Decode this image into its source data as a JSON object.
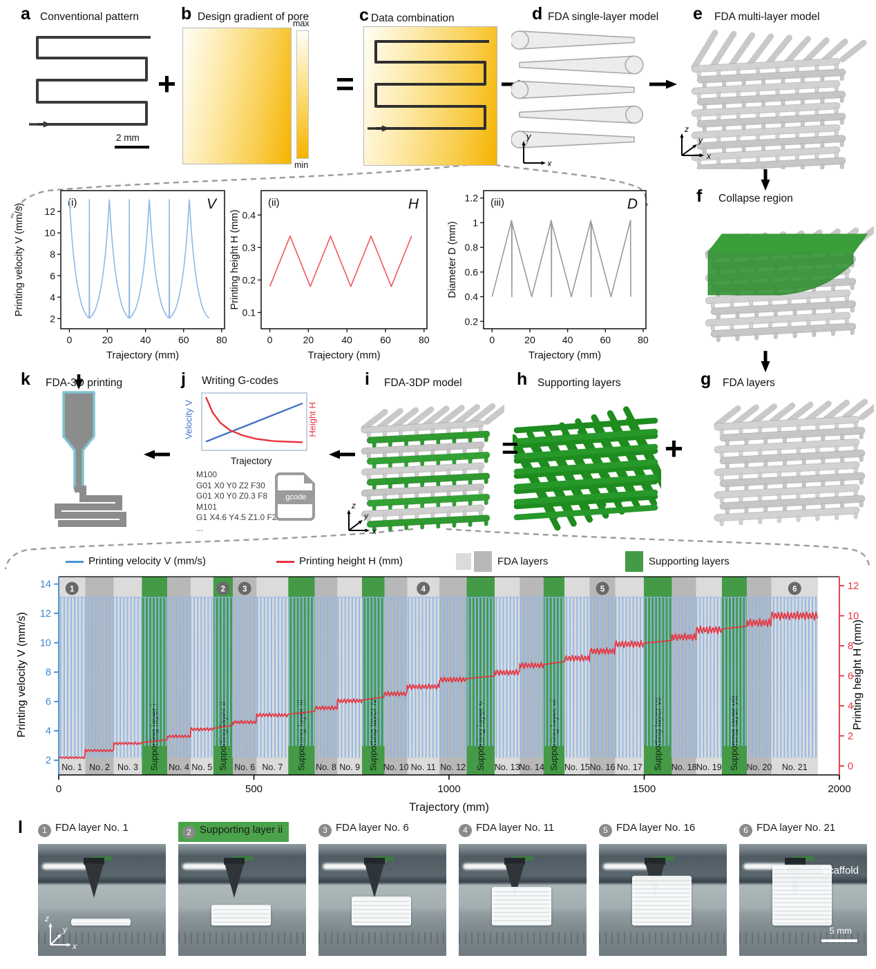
{
  "colors": {
    "blue_axis": "#3f87d2",
    "blue_curve": "#8fb8e8",
    "blue_legend": "#4a90d9",
    "red": "#e8323c",
    "red_curve": "#ee4048",
    "green": "#459a48",
    "green_dark": "#1e8c1e",
    "orange": "#f6b301",
    "gray_band_light": "#dbdbdb",
    "gray_band_dark": "#b8b8b8",
    "badge": "#696969",
    "pattern_stroke": "#3a3a3a",
    "lattice_gray": "#cccccc"
  },
  "panels": {
    "a": {
      "label": "a",
      "title": "Conventional pattern",
      "scale_bar": "2 mm"
    },
    "op_plus_top": "+",
    "b": {
      "label": "b",
      "title": "Design gradient of pore",
      "colorbar_max": "max",
      "colorbar_min": "min"
    },
    "op_equals_top": "=",
    "c": {
      "label": "c",
      "title": "Data combination"
    },
    "d": {
      "label": "d",
      "title": "FDA single-layer model",
      "axis_v": "y",
      "axis_h": "x"
    },
    "e": {
      "label": "e",
      "title": "FDA multi-layer model",
      "axis_up": "z",
      "axis_diag": "y",
      "axis_right": "x"
    },
    "f": {
      "label": "f",
      "title": "Collapse region"
    },
    "g": {
      "label": "g",
      "title": "FDA layers"
    },
    "h": {
      "label": "h",
      "title": "Supporting layers"
    },
    "i": {
      "label": "i",
      "title": "FDA-3DP model",
      "axis_up": "z",
      "axis_diag": "y",
      "axis_right": "x"
    },
    "j": {
      "label": "j",
      "title": "Writing G-codes",
      "mini_left": "Velocity V",
      "mini_right": "Height H",
      "mini_x": "Trajectory",
      "file_label": ".gcode",
      "gcode": [
        "M100",
        "G01 X0 Y0 Z2 F30",
        "G01 X0 Y0 Z0.3 F8",
        "M101",
        "G1 X4.6 Y4.5 Z1.0 F2",
        "..."
      ]
    },
    "k": {
      "label": "k",
      "title": "FDA-3D printing"
    },
    "op_equals_mid": "=",
    "op_plus_mid": "+",
    "l": {
      "label": "l",
      "scaffold_label": "Scaffold",
      "scale_bar": "5 mm",
      "axis_up": "z",
      "axis_diag": "y",
      "axis_right": "x",
      "photos": [
        {
          "badge": "1",
          "caption": "FDA layer No. 1",
          "scaffold_h": 10,
          "support": false,
          "show_axes": true
        },
        {
          "badge": "2",
          "caption": "Supporting layer ii",
          "scaffold_h": 30,
          "support": true,
          "show_axes": false
        },
        {
          "badge": "3",
          "caption": "FDA layer No. 6",
          "scaffold_h": 42,
          "support": false,
          "show_axes": false
        },
        {
          "badge": "4",
          "caption": "FDA layer No. 11",
          "scaffold_h": 56,
          "support": false,
          "show_axes": false
        },
        {
          "badge": "5",
          "caption": "FDA layer No. 16",
          "scaffold_h": 72,
          "support": false,
          "show_axes": false
        },
        {
          "badge": "6",
          "caption": "FDA layer No. 21",
          "scaffold_h": 88,
          "support": false,
          "show_axes": false
        }
      ]
    }
  },
  "chart_data": [
    {
      "id": "panel_i_velocity",
      "type": "line",
      "panel_tag": "(i)",
      "corner": "V",
      "xlabel": "Trajectory (mm)",
      "ylabel": "Printing velocity V (mm/s)",
      "xlim": [
        -4.5,
        81.5
      ],
      "xticks": [
        0,
        20,
        40,
        60,
        80
      ],
      "ylim": [
        1.05,
        13.95
      ],
      "yticks": [
        2,
        4,
        6,
        8,
        10,
        12
      ],
      "x_end": 73.45,
      "period_mm": 21,
      "color": "#8fb8e8",
      "points_period": [
        [
          0,
          13.1
        ],
        [
          1,
          10.3
        ],
        [
          2,
          8.2
        ],
        [
          3,
          6.6
        ],
        [
          4,
          5.3
        ],
        [
          5,
          4.4
        ],
        [
          6,
          3.6
        ],
        [
          7,
          3.0
        ],
        [
          8,
          2.6
        ],
        [
          9,
          2.3
        ],
        [
          10,
          2.1
        ],
        [
          10.4,
          2.05
        ],
        [
          10.5,
          13.1
        ],
        [
          10.6,
          2.05
        ],
        [
          11,
          2.1
        ],
        [
          12,
          2.3
        ],
        [
          13,
          2.6
        ],
        [
          14,
          3.0
        ],
        [
          15,
          3.6
        ],
        [
          16,
          4.4
        ],
        [
          17,
          5.3
        ],
        [
          18,
          6.6
        ],
        [
          19,
          8.2
        ],
        [
          20,
          10.3
        ],
        [
          21,
          13.1
        ]
      ]
    },
    {
      "id": "panel_ii_height",
      "type": "line",
      "panel_tag": "(ii)",
      "corner": "H",
      "xlabel": "Trajectory (mm)",
      "ylabel": "Printing height H (mm)",
      "xlim": [
        -4.5,
        81.5
      ],
      "xticks": [
        0,
        20,
        40,
        60,
        80
      ],
      "ylim": [
        0.05,
        0.475
      ],
      "yticks": [
        0.1,
        0.2,
        0.3,
        0.4
      ],
      "x_end": 73.6,
      "period_mm": 21,
      "color": "#f0565e",
      "points_period": [
        [
          0,
          0.18
        ],
        [
          10.5,
          0.335
        ],
        [
          21,
          0.18
        ]
      ]
    },
    {
      "id": "panel_iii_diameter",
      "type": "line",
      "panel_tag": "(iii)",
      "corner": "D",
      "xlabel": "Trajectory (mm)",
      "ylabel": "Diameter D (mm)",
      "xlim": [
        -4.5,
        81.5
      ],
      "xticks": [
        0,
        20,
        40,
        60,
        80
      ],
      "ylim": [
        0.14,
        1.26
      ],
      "yticks": [
        0.2,
        0.4,
        0.6,
        0.8,
        1.0,
        1.2
      ],
      "x_end": 73.45,
      "period_mm": 21,
      "color": "#9a9a9a",
      "points_period": [
        [
          0,
          0.4
        ],
        [
          10.35,
          1.02
        ],
        [
          10.45,
          0.4
        ],
        [
          10.55,
          1.0
        ],
        [
          21,
          0.4
        ]
      ]
    },
    {
      "id": "gcode_mini",
      "type": "line",
      "xlabel": "Trajectory",
      "left_label": "Velocity V",
      "right_label": "Height H",
      "blue": [
        [
          0,
          0.15
        ],
        [
          1,
          0.82
        ]
      ],
      "red": [
        [
          0,
          0.93
        ],
        [
          0.07,
          0.66
        ],
        [
          0.15,
          0.48
        ],
        [
          0.25,
          0.35
        ],
        [
          0.38,
          0.26
        ],
        [
          0.52,
          0.2
        ],
        [
          0.7,
          0.16
        ],
        [
          1,
          0.14
        ]
      ]
    },
    {
      "id": "printing_profile",
      "type": "line",
      "xlabel": "Trajectory (mm)",
      "xlim": [
        0,
        2000
      ],
      "xticks": [
        0,
        500,
        1000,
        1500,
        2000
      ],
      "legend": {
        "velocity": "Printing velocity V (mm/s)",
        "height": "Printing height H (mm)",
        "fda": "FDA layers",
        "support": "Supporting layers"
      },
      "left_axis": {
        "label": "Printing velocity V (mm/s)",
        "ticks": [
          2,
          4,
          6,
          8,
          10,
          12,
          14
        ],
        "lim": [
          1.0,
          14.5
        ]
      },
      "right_axis": {
        "label": "Printing height H (mm)",
        "ticks": [
          0,
          2,
          4,
          6,
          8,
          10,
          12
        ],
        "lim": [
          -0.6,
          12.6
        ]
      },
      "velocity": {
        "v_top": 13.1,
        "v_bottom": 2.2,
        "v_bottom_support": 3.0,
        "spike_pitch_mm": 9
      },
      "height": {
        "h_start": 0.55,
        "h_end": 10.0,
        "fda_layers": 21,
        "osc_amp_start": 0.07,
        "osc_amp_step": 0.011,
        "osc_pitch_mm": 8
      },
      "bands": [
        {
          "n": "No. 1",
          "t": "fda",
          "s": "light",
          "x0": 0,
          "x1": 68,
          "badge": "1"
        },
        {
          "n": "No. 2",
          "t": "fda",
          "s": "dark",
          "x0": 68,
          "x1": 141
        },
        {
          "n": "No. 3",
          "t": "fda",
          "s": "light",
          "x0": 141,
          "x1": 213
        },
        {
          "n": "Supporting layer i",
          "t": "sup",
          "x0": 213,
          "x1": 278
        },
        {
          "n": "No. 4",
          "t": "fda",
          "s": "dark",
          "x0": 278,
          "x1": 338
        },
        {
          "n": "No. 5",
          "t": "fda",
          "s": "light",
          "x0": 338,
          "x1": 396
        },
        {
          "n": "Supporting layer ii",
          "t": "sup",
          "x0": 396,
          "x1": 446,
          "badge": "2"
        },
        {
          "n": "No. 6",
          "t": "fda",
          "s": "dark",
          "x0": 446,
          "x1": 507,
          "badge": "3"
        },
        {
          "n": "No. 7",
          "t": "fda",
          "s": "light",
          "x0": 507,
          "x1": 588
        },
        {
          "n": "Supporting layer iii",
          "t": "sup",
          "x0": 588,
          "x1": 656
        },
        {
          "n": "No. 8",
          "t": "fda",
          "s": "dark",
          "x0": 656,
          "x1": 714
        },
        {
          "n": "No. 9",
          "t": "fda",
          "s": "light",
          "x0": 714,
          "x1": 777
        },
        {
          "n": "Supporting layer iv",
          "t": "sup",
          "x0": 777,
          "x1": 835
        },
        {
          "n": "No. 10",
          "t": "fda",
          "s": "dark",
          "x0": 835,
          "x1": 893
        },
        {
          "n": "No. 11",
          "t": "fda",
          "s": "light",
          "x0": 893,
          "x1": 975,
          "badge": "4"
        },
        {
          "n": "No. 12",
          "t": "fda",
          "s": "dark",
          "x0": 975,
          "x1": 1045
        },
        {
          "n": "Supporting layer v",
          "t": "sup",
          "x0": 1045,
          "x1": 1117
        },
        {
          "n": "No. 13",
          "t": "fda",
          "s": "light",
          "x0": 1117,
          "x1": 1181
        },
        {
          "n": "No. 14",
          "t": "fda",
          "s": "dark",
          "x0": 1181,
          "x1": 1242
        },
        {
          "n": "Supporting layer vi",
          "t": "sup",
          "x0": 1242,
          "x1": 1296
        },
        {
          "n": "No. 15",
          "t": "fda",
          "s": "light",
          "x0": 1296,
          "x1": 1360
        },
        {
          "n": "No. 16",
          "t": "fda",
          "s": "dark",
          "x0": 1360,
          "x1": 1426,
          "badge": "5"
        },
        {
          "n": "No. 17",
          "t": "fda",
          "s": "light",
          "x0": 1426,
          "x1": 1499
        },
        {
          "n": "Supporting layer vii",
          "t": "sup",
          "x0": 1499,
          "x1": 1571
        },
        {
          "n": "No. 18",
          "t": "fda",
          "s": "dark",
          "x0": 1571,
          "x1": 1633
        },
        {
          "n": "No. 19",
          "t": "fda",
          "s": "light",
          "x0": 1633,
          "x1": 1699
        },
        {
          "n": "Supporting layer viii",
          "t": "sup",
          "x0": 1699,
          "x1": 1763
        },
        {
          "n": "No. 20",
          "t": "fda",
          "s": "dark",
          "x0": 1763,
          "x1": 1826
        },
        {
          "n": "No. 21",
          "t": "fda",
          "s": "light",
          "x0": 1826,
          "x1": 1945,
          "badge": "6"
        }
      ]
    }
  ]
}
